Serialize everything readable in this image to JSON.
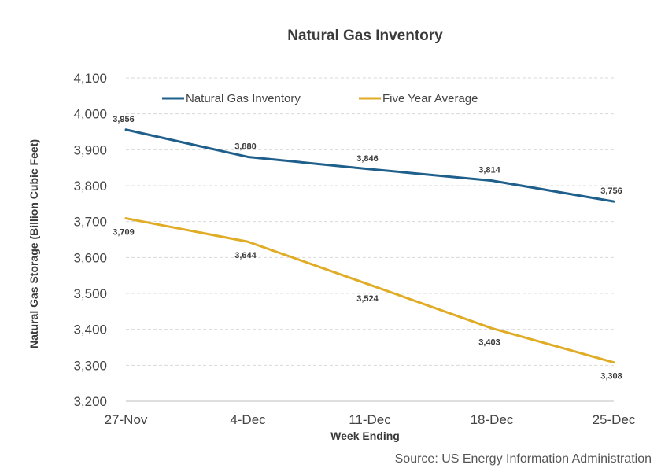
{
  "chart_data": {
    "type": "line",
    "title": "Natural  Gas Inventory",
    "xlabel": "Week Ending",
    "ylabel": "Natural Gas Storage (Billion Cubic Feet)",
    "categories": [
      "27-Nov",
      "4-Dec",
      "11-Dec",
      "18-Dec",
      "25-Dec"
    ],
    "ylim": [
      3200,
      4100
    ],
    "yticks": [
      3200,
      3300,
      3400,
      3500,
      3600,
      3700,
      3800,
      3900,
      4000,
      4100
    ],
    "ytick_labels": [
      "3,200",
      "3,300",
      "3,400",
      "3,500",
      "3,600",
      "3,700",
      "3,800",
      "3,900",
      "4,000",
      "4,100"
    ],
    "grid": true,
    "legend_position": "top",
    "series": [
      {
        "name": "Natural Gas Inventory",
        "color": "#1f5f8b",
        "values": [
          3956,
          3880,
          3846,
          3814,
          3756
        ],
        "labels": [
          "3,956",
          "3,880",
          "3,846",
          "3,814",
          "3,756"
        ]
      },
      {
        "name": "Five Year Average",
        "color": "#e0ac26",
        "values": [
          3709,
          3644,
          3524,
          3403,
          3308
        ],
        "labels": [
          "3,709",
          "3,644",
          "3,524",
          "3,403",
          "3,308"
        ]
      }
    ],
    "source": "Source: US Energy Information Administration"
  }
}
